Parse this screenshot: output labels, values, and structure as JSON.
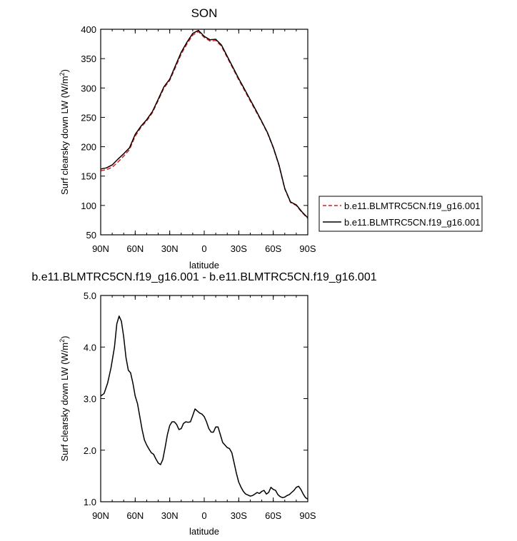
{
  "chart_data": [
    {
      "type": "line",
      "title": "SON",
      "xlabel": "latitude",
      "ylabel": "Surf clearsky down LW (W/m",
      "ylabel_sup": "2",
      "ylabel_close": ")",
      "xlim": [
        90,
        -90
      ],
      "ylim": [
        50,
        400
      ],
      "xticks": [
        {
          "value": 90,
          "label": "90N"
        },
        {
          "value": 60,
          "label": "60N"
        },
        {
          "value": 30,
          "label": "30N"
        },
        {
          "value": 0,
          "label": "0"
        },
        {
          "value": -30,
          "label": "30S"
        },
        {
          "value": -60,
          "label": "60S"
        },
        {
          "value": -90,
          "label": "90S"
        }
      ],
      "yticks": [
        50,
        100,
        150,
        200,
        250,
        300,
        350,
        400
      ],
      "legend": "right",
      "series": [
        {
          "name": "b.e11.BLMTRC5CN.f19_g16.001",
          "color": "#e41a1c",
          "dash": "dashed",
          "x": [
            90,
            85,
            80,
            75,
            70,
            65,
            60,
            55,
            50,
            45,
            40,
            35,
            30,
            25,
            20,
            15,
            10,
            5,
            0,
            -5,
            -10,
            -15,
            -20,
            -25,
            -30,
            -35,
            -40,
            -45,
            -50,
            -55,
            -60,
            -65,
            -70,
            -75,
            -80,
            -85,
            -90
          ],
          "y": [
            159,
            161,
            165,
            174,
            184,
            195,
            218,
            233,
            244,
            258,
            279,
            300,
            313,
            335,
            358,
            375,
            390,
            396,
            386,
            380,
            381,
            371,
            352,
            333,
            314,
            296,
            278,
            260,
            242,
            223,
            198,
            168,
            128,
            105,
            100,
            88,
            78
          ]
        },
        {
          "name": "b.e11.BLMTRC5CN.f19_g16.001",
          "color": "#000000",
          "dash": "solid",
          "x": [
            90,
            85,
            80,
            75,
            70,
            65,
            60,
            55,
            50,
            45,
            40,
            35,
            30,
            25,
            20,
            15,
            10,
            5,
            0,
            -5,
            -10,
            -15,
            -20,
            -25,
            -30,
            -35,
            -40,
            -45,
            -50,
            -55,
            -60,
            -65,
            -70,
            -75,
            -80,
            -85,
            -90
          ],
          "y": [
            162,
            164,
            169,
            179,
            188,
            198,
            221,
            235,
            246,
            260,
            281,
            302,
            315,
            338,
            361,
            378,
            393,
            398,
            388,
            382,
            383,
            373,
            354,
            335,
            316,
            298,
            280,
            262,
            243,
            224,
            199,
            169,
            129,
            106,
            101,
            89,
            79
          ]
        }
      ]
    },
    {
      "type": "line",
      "title": "b.e11.BLMTRC5CN.f19_g16.001 - b.e11.BLMTRC5CN.f19_g16.001",
      "xlabel": "latitude",
      "ylabel": "Surf clearsky down LW (W/m",
      "ylabel_sup": "2",
      "ylabel_close": ")",
      "xlim": [
        90,
        -90
      ],
      "ylim": [
        1.0,
        5.0
      ],
      "xticks": [
        {
          "value": 90,
          "label": "90N"
        },
        {
          "value": 60,
          "label": "60N"
        },
        {
          "value": 30,
          "label": "30N"
        },
        {
          "value": 0,
          "label": "0"
        },
        {
          "value": -30,
          "label": "30S"
        },
        {
          "value": -60,
          "label": "60S"
        },
        {
          "value": -90,
          "label": "90S"
        }
      ],
      "yticks": [
        "1.0",
        "2.0",
        "3.0",
        "4.0",
        "5.0"
      ],
      "series": [
        {
          "color": "#000000",
          "dash": "solid",
          "x": [
            90,
            87,
            84,
            81,
            78,
            76,
            74,
            72,
            70,
            68,
            66,
            64,
            62,
            60,
            58,
            56,
            54,
            52,
            50,
            48,
            46,
            44,
            42,
            40,
            38,
            36,
            34,
            32,
            30,
            28,
            26,
            24,
            22,
            20,
            18,
            16,
            14,
            12,
            10,
            8,
            6,
            4,
            2,
            0,
            -2,
            -4,
            -6,
            -8,
            -10,
            -12,
            -14,
            -16,
            -18,
            -20,
            -22,
            -24,
            -26,
            -28,
            -30,
            -32,
            -34,
            -36,
            -38,
            -40,
            -42,
            -44,
            -46,
            -48,
            -50,
            -52,
            -54,
            -56,
            -58,
            -60,
            -62,
            -64,
            -66,
            -68,
            -70,
            -72,
            -74,
            -76,
            -78,
            -80,
            -82,
            -84,
            -86,
            -88,
            -90
          ],
          "y": [
            3.05,
            3.1,
            3.3,
            3.6,
            4.0,
            4.45,
            4.6,
            4.5,
            4.2,
            3.8,
            3.55,
            3.5,
            3.3,
            3.05,
            2.9,
            2.65,
            2.4,
            2.2,
            2.1,
            2.02,
            1.95,
            1.92,
            1.83,
            1.75,
            1.72,
            1.82,
            2.05,
            2.3,
            2.48,
            2.55,
            2.55,
            2.5,
            2.4,
            2.42,
            2.52,
            2.55,
            2.54,
            2.55,
            2.67,
            2.8,
            2.76,
            2.72,
            2.7,
            2.65,
            2.55,
            2.42,
            2.35,
            2.35,
            2.45,
            2.45,
            2.3,
            2.15,
            2.1,
            2.05,
            2.03,
            1.95,
            1.75,
            1.55,
            1.38,
            1.28,
            1.2,
            1.15,
            1.13,
            1.11,
            1.12,
            1.15,
            1.18,
            1.16,
            1.2,
            1.22,
            1.15,
            1.18,
            1.28,
            1.24,
            1.22,
            1.14,
            1.1,
            1.08,
            1.09,
            1.12,
            1.14,
            1.18,
            1.22,
            1.28,
            1.3,
            1.24,
            1.15,
            1.08,
            1.05
          ]
        }
      ]
    }
  ]
}
